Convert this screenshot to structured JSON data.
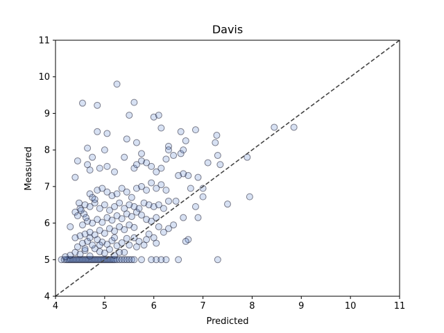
{
  "chart_data": {
    "type": "scatter",
    "title": "Davis",
    "xlabel": "Predicted",
    "ylabel": "Measured",
    "xlim": [
      4,
      11
    ],
    "ylim": [
      4,
      11
    ],
    "xticks": [
      "4",
      "5",
      "6",
      "7",
      "8",
      "9",
      "10",
      "11"
    ],
    "yticks": [
      "4",
      "5",
      "6",
      "7",
      "8",
      "9",
      "10",
      "11"
    ],
    "grid": false,
    "reference_line": {
      "style": "dashed",
      "from": [
        4,
        4
      ],
      "to": [
        11,
        11
      ],
      "color": "#444444"
    },
    "marker_fill": "#4a78c8",
    "marker_stroke": "#1a1a2e",
    "series": [
      {
        "name": "points",
        "points": [
          [
            4.12,
            5.0
          ],
          [
            4.18,
            5.0
          ],
          [
            4.22,
            5.0
          ],
          [
            4.25,
            5.0
          ],
          [
            4.28,
            5.0
          ],
          [
            4.31,
            5.0
          ],
          [
            4.34,
            5.0
          ],
          [
            4.37,
            5.0
          ],
          [
            4.4,
            5.0
          ],
          [
            4.43,
            5.0
          ],
          [
            4.46,
            5.0
          ],
          [
            4.49,
            5.0
          ],
          [
            4.52,
            5.0
          ],
          [
            4.55,
            5.0
          ],
          [
            4.58,
            5.0
          ],
          [
            4.61,
            5.0
          ],
          [
            4.64,
            5.0
          ],
          [
            4.67,
            5.0
          ],
          [
            4.7,
            5.0
          ],
          [
            4.73,
            5.0
          ],
          [
            4.76,
            5.0
          ],
          [
            4.79,
            5.0
          ],
          [
            4.82,
            5.0
          ],
          [
            4.85,
            5.0
          ],
          [
            4.88,
            5.0
          ],
          [
            4.91,
            5.0
          ],
          [
            4.94,
            5.0
          ],
          [
            4.97,
            5.0
          ],
          [
            5.0,
            5.0
          ],
          [
            5.03,
            5.0
          ],
          [
            5.06,
            5.0
          ],
          [
            5.09,
            5.0
          ],
          [
            5.12,
            5.0
          ],
          [
            5.15,
            5.0
          ],
          [
            5.18,
            5.0
          ],
          [
            5.21,
            5.0
          ],
          [
            5.25,
            5.0
          ],
          [
            5.3,
            5.0
          ],
          [
            5.35,
            5.0
          ],
          [
            5.4,
            5.0
          ],
          [
            5.45,
            5.0
          ],
          [
            5.5,
            5.0
          ],
          [
            5.55,
            5.0
          ],
          [
            5.6,
            5.0
          ],
          [
            5.75,
            5.0
          ],
          [
            5.95,
            5.0
          ],
          [
            6.05,
            5.0
          ],
          [
            6.15,
            5.0
          ],
          [
            6.25,
            5.0
          ],
          [
            6.5,
            5.0
          ],
          [
            7.3,
            5.0
          ],
          [
            4.2,
            5.08
          ],
          [
            4.3,
            5.12
          ],
          [
            4.4,
            5.2
          ],
          [
            4.5,
            5.15
          ],
          [
            4.6,
            5.25
          ],
          [
            4.7,
            5.1
          ],
          [
            4.8,
            5.3
          ],
          [
            4.9,
            5.22
          ],
          [
            5.0,
            5.18
          ],
          [
            5.1,
            5.28
          ],
          [
            5.2,
            5.12
          ],
          [
            5.3,
            5.2
          ],
          [
            4.45,
            5.35
          ],
          [
            4.55,
            5.45
          ],
          [
            4.65,
            5.5
          ],
          [
            4.75,
            5.4
          ],
          [
            4.85,
            5.55
          ],
          [
            4.95,
            5.48
          ],
          [
            5.05,
            5.42
          ],
          [
            5.15,
            5.52
          ],
          [
            5.25,
            5.38
          ],
          [
            5.35,
            5.46
          ],
          [
            5.45,
            5.58
          ],
          [
            4.5,
            5.65
          ],
          [
            4.6,
            5.7
          ],
          [
            4.7,
            5.75
          ],
          [
            4.8,
            5.68
          ],
          [
            4.9,
            5.8
          ],
          [
            5.0,
            5.72
          ],
          [
            5.1,
            5.85
          ],
          [
            5.2,
            5.78
          ],
          [
            5.3,
            5.9
          ],
          [
            5.4,
            5.82
          ],
          [
            5.5,
            5.95
          ],
          [
            5.6,
            5.88
          ],
          [
            4.55,
            5.95
          ],
          [
            4.65,
            6.05
          ],
          [
            4.75,
            6.0
          ],
          [
            4.85,
            6.1
          ],
          [
            4.95,
            6.02
          ],
          [
            5.05,
            6.15
          ],
          [
            5.15,
            6.08
          ],
          [
            5.25,
            6.2
          ],
          [
            5.35,
            6.12
          ],
          [
            5.45,
            6.25
          ],
          [
            5.55,
            6.18
          ],
          [
            5.65,
            6.3
          ],
          [
            5.75,
            6.22
          ],
          [
            5.85,
            6.1
          ],
          [
            5.95,
            6.05
          ],
          [
            6.05,
            6.15
          ],
          [
            4.3,
            5.9
          ],
          [
            4.4,
            5.6
          ],
          [
            4.6,
            5.3
          ],
          [
            4.7,
            5.6
          ],
          [
            4.9,
            5.4
          ],
          [
            5.2,
            5.6
          ],
          [
            5.4,
            5.2
          ],
          [
            5.5,
            5.4
          ],
          [
            5.6,
            5.6
          ],
          [
            5.7,
            5.5
          ],
          [
            5.8,
            5.4
          ],
          [
            5.9,
            5.7
          ],
          [
            6.0,
            5.6
          ],
          [
            6.1,
            5.9
          ],
          [
            6.2,
            5.75
          ],
          [
            6.3,
            5.85
          ],
          [
            6.4,
            5.95
          ],
          [
            5.65,
            5.35
          ],
          [
            5.85,
            5.55
          ],
          [
            6.05,
            5.45
          ],
          [
            6.6,
            6.15
          ],
          [
            6.7,
            5.55
          ],
          [
            6.65,
            5.5
          ],
          [
            6.9,
            6.15
          ],
          [
            4.4,
            6.3
          ],
          [
            4.5,
            6.4
          ],
          [
            4.6,
            6.5
          ],
          [
            4.7,
            6.45
          ],
          [
            4.8,
            6.55
          ],
          [
            4.9,
            6.4
          ],
          [
            5.0,
            6.5
          ],
          [
            5.1,
            6.35
          ],
          [
            5.2,
            6.45
          ],
          [
            5.3,
            6.55
          ],
          [
            5.4,
            6.4
          ],
          [
            5.5,
            6.5
          ],
          [
            5.6,
            6.45
          ],
          [
            5.7,
            6.4
          ],
          [
            5.8,
            6.55
          ],
          [
            5.9,
            6.5
          ],
          [
            6.0,
            6.45
          ],
          [
            6.1,
            6.5
          ],
          [
            6.2,
            6.4
          ],
          [
            6.3,
            6.6
          ],
          [
            4.45,
            6.2
          ],
          [
            4.58,
            6.25
          ],
          [
            4.52,
            6.35
          ],
          [
            4.62,
            6.15
          ],
          [
            4.48,
            6.55
          ],
          [
            4.7,
            6.8
          ],
          [
            4.75,
            6.7
          ],
          [
            4.8,
            6.65
          ],
          [
            4.85,
            6.9
          ],
          [
            4.95,
            6.95
          ],
          [
            5.05,
            6.85
          ],
          [
            5.15,
            6.75
          ],
          [
            5.25,
            6.8
          ],
          [
            5.35,
            6.95
          ],
          [
            5.45,
            6.85
          ],
          [
            5.55,
            6.7
          ],
          [
            5.65,
            6.95
          ],
          [
            5.75,
            7.0
          ],
          [
            5.85,
            6.9
          ],
          [
            5.95,
            7.1
          ],
          [
            6.05,
            6.95
          ],
          [
            6.15,
            7.05
          ],
          [
            6.25,
            6.9
          ],
          [
            6.45,
            6.6
          ],
          [
            6.5,
            7.3
          ],
          [
            6.6,
            7.35
          ],
          [
            6.75,
            6.95
          ],
          [
            6.85,
            6.45
          ],
          [
            6.9,
            7.25
          ],
          [
            7.0,
            6.95
          ],
          [
            4.65,
            7.6
          ],
          [
            4.7,
            7.45
          ],
          [
            4.9,
            7.5
          ],
          [
            5.05,
            7.55
          ],
          [
            5.2,
            7.4
          ],
          [
            5.4,
            7.8
          ],
          [
            5.6,
            7.5
          ],
          [
            5.65,
            7.6
          ],
          [
            5.75,
            7.7
          ],
          [
            5.85,
            7.65
          ],
          [
            5.95,
            7.55
          ],
          [
            6.05,
            7.4
          ],
          [
            6.15,
            7.5
          ],
          [
            6.25,
            7.75
          ],
          [
            6.3,
            8.1
          ],
          [
            6.4,
            7.85
          ],
          [
            6.55,
            7.9
          ],
          [
            6.6,
            8.0
          ],
          [
            6.65,
            8.25
          ],
          [
            6.7,
            7.3
          ],
          [
            6.85,
            8.55
          ],
          [
            7.0,
            6.72
          ],
          [
            7.1,
            7.65
          ],
          [
            7.25,
            8.2
          ],
          [
            7.28,
            8.4
          ],
          [
            7.3,
            7.85
          ],
          [
            7.35,
            7.6
          ],
          [
            7.5,
            6.52
          ],
          [
            7.9,
            7.8
          ],
          [
            7.95,
            6.72
          ],
          [
            4.4,
            7.25
          ],
          [
            4.45,
            7.7
          ],
          [
            4.65,
            8.05
          ],
          [
            4.75,
            7.8
          ],
          [
            4.85,
            8.5
          ],
          [
            5.0,
            8.0
          ],
          [
            5.05,
            8.45
          ],
          [
            5.45,
            8.3
          ],
          [
            5.65,
            8.2
          ],
          [
            5.75,
            7.9
          ],
          [
            6.0,
            8.9
          ],
          [
            6.1,
            8.95
          ],
          [
            6.15,
            8.6
          ],
          [
            6.3,
            8.0
          ],
          [
            6.55,
            8.5
          ],
          [
            8.45,
            8.62
          ],
          [
            8.85,
            8.62
          ],
          [
            4.55,
            9.28
          ],
          [
            4.85,
            9.22
          ],
          [
            5.5,
            8.95
          ],
          [
            5.6,
            9.3
          ],
          [
            5.25,
            9.8
          ]
        ]
      }
    ]
  }
}
